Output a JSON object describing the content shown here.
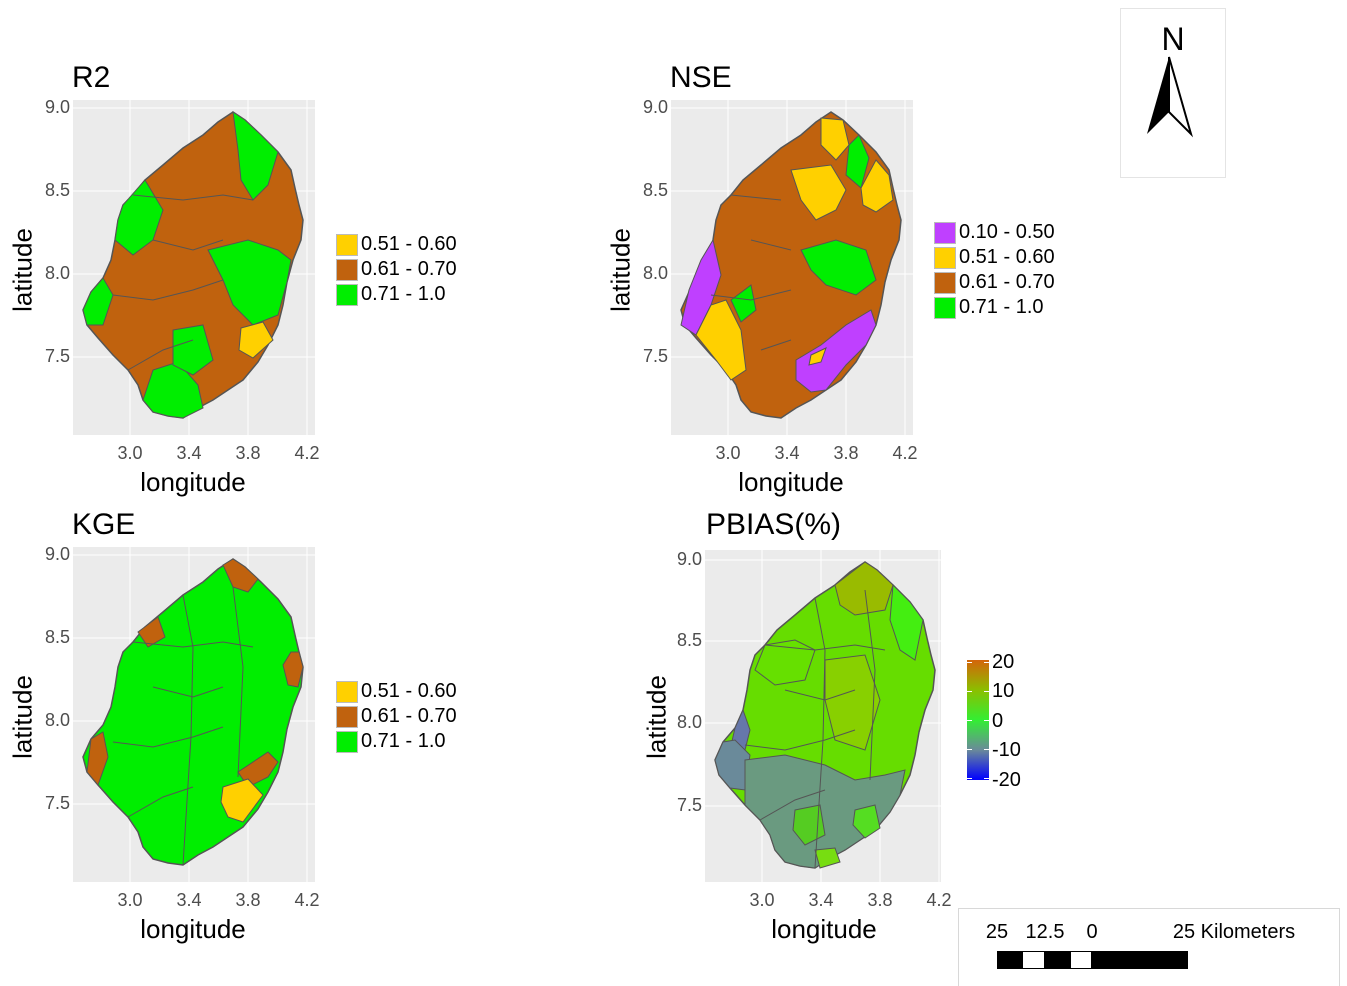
{
  "panels": [
    {
      "title": "R2",
      "xlabel": "longitude",
      "ylabel": "latitude",
      "yticks": [
        "9.0",
        "8.5",
        "8.0",
        "7.5"
      ],
      "xticks": [
        "3.0",
        "3.4",
        "3.8",
        "4.2"
      ],
      "legend": [
        {
          "label": "0.51 - 0.60",
          "color": "#ffd000"
        },
        {
          "label": "0.61 - 0.70",
          "color": "#c0620e"
        },
        {
          "label": "0.71 - 1.0",
          "color": "#00ee00"
        }
      ]
    },
    {
      "title": "NSE",
      "xlabel": "longitude",
      "ylabel": "latitude",
      "yticks": [
        "9.0",
        "8.5",
        "8.0",
        "7.5"
      ],
      "xticks": [
        "3.0",
        "3.4",
        "3.8",
        "4.2"
      ],
      "legend": [
        {
          "label": "0.10 - 0.50",
          "color": "#bf40ff"
        },
        {
          "label": "0.51 - 0.60",
          "color": "#ffd000"
        },
        {
          "label": "0.61 - 0.70",
          "color": "#c0620e"
        },
        {
          "label": "0.71 - 1.0",
          "color": "#00ee00"
        }
      ]
    },
    {
      "title": "KGE",
      "xlabel": "longitude",
      "ylabel": "latitude",
      "yticks": [
        "9.0",
        "8.5",
        "8.0",
        "7.5"
      ],
      "xticks": [
        "3.0",
        "3.4",
        "3.8",
        "4.2"
      ],
      "legend": [
        {
          "label": "0.51 - 0.60",
          "color": "#ffd000"
        },
        {
          "label": "0.61 - 0.70",
          "color": "#c0620e"
        },
        {
          "label": "0.71 - 1.0",
          "color": "#00ee00"
        }
      ]
    },
    {
      "title": "PBIAS(%)",
      "xlabel": "longitude",
      "ylabel": "latitude",
      "yticks": [
        "9.0",
        "8.5",
        "8.0",
        "7.5"
      ],
      "xticks": [
        "3.0",
        "3.4",
        "3.8",
        "4.2"
      ],
      "colorbar": {
        "labels": [
          "20",
          "10",
          "0",
          "-10",
          "-20"
        ],
        "colors": [
          "#d4650a",
          "#8bbf00",
          "#33ee33",
          "#6a8a9a",
          "#0000ff"
        ]
      }
    }
  ],
  "north_arrow": {
    "label": "N"
  },
  "scale_bar": {
    "labels": [
      "25",
      "12.5",
      "0",
      "25 Kilometers"
    ]
  }
}
